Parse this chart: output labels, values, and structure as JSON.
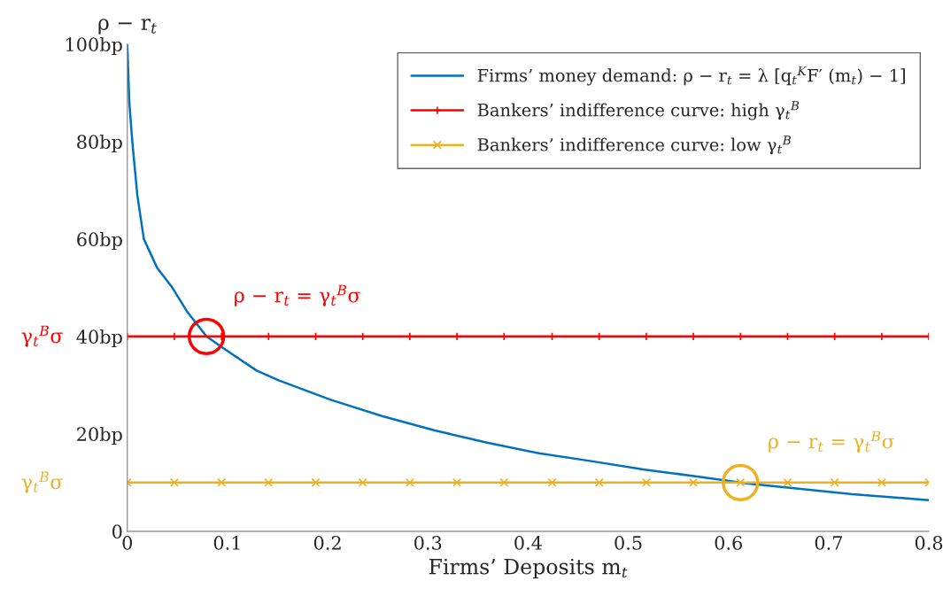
{
  "chart_data": {
    "type": "line",
    "xlabel": "Firms’ Deposits m$_{t}$",
    "ylabel": "ρ − r$_{t}$",
    "xlim": [
      0,
      0.8
    ],
    "xticks": [
      0,
      0.1,
      0.2,
      0.3,
      0.4,
      0.5,
      0.6,
      0.7,
      0.8
    ],
    "ylim": [
      0,
      100
    ],
    "yticks": [
      0,
      {
        "value": 20,
        "label": "20bp"
      },
      {
        "value": 40,
        "label": "40bp"
      },
      {
        "value": 60,
        "label": "60bp"
      },
      {
        "value": 80,
        "label": "80bp"
      },
      {
        "value": 100,
        "label": "100bp"
      }
    ],
    "grid": false,
    "legend": "top right",
    "series": [
      {
        "name": "Firms’ money demand: ρ − r$_{t}$ = λ [q$_{t}$$^{K}$F′ (m$_{t}$) − 1]",
        "color": "#0072bd",
        "marker": "none",
        "x": [
          0,
          0.002,
          0.005,
          0.01,
          0.0165,
          0.03,
          0.045,
          0.06,
          0.079,
          0.1,
          0.129,
          0.151,
          0.203,
          0.255,
          0.307,
          0.359,
          0.411,
          0.463,
          0.515,
          0.567,
          0.62,
          0.672,
          0.724,
          0.8
        ],
        "values": [
          100,
          88,
          80,
          69,
          60,
          54,
          50,
          45,
          40,
          37,
          33,
          31,
          27,
          23.6,
          20.7,
          18.2,
          16,
          14.4,
          12.7,
          11.3,
          9.8,
          8.7,
          7.6,
          6.4
        ]
      },
      {
        "name": "Bankers’ indifference curve: high γ$_{t}$$^{B}$",
        "color": "#ff0000",
        "marker": "plus",
        "x": [
          0,
          0.047,
          0.094,
          0.141,
          0.188,
          0.235,
          0.282,
          0.329,
          0.376,
          0.424,
          0.471,
          0.518,
          0.565,
          0.612,
          0.659,
          0.706,
          0.753,
          0.8
        ],
        "values": [
          40,
          40,
          40,
          40,
          40,
          40,
          40,
          40,
          40,
          40,
          40,
          40,
          40,
          40,
          40,
          40,
          40,
          40
        ]
      },
      {
        "name": "Bankers’ indifference curve: low γ$_{t}$$^{B}$",
        "color": "#edb120",
        "marker": "cross",
        "x": [
          0,
          0.047,
          0.094,
          0.141,
          0.188,
          0.235,
          0.282,
          0.329,
          0.376,
          0.424,
          0.471,
          0.518,
          0.565,
          0.612,
          0.659,
          0.706,
          0.753,
          0.8
        ],
        "values": [
          10,
          10,
          10,
          10,
          10,
          10,
          10,
          10,
          10,
          10,
          10,
          10,
          10,
          10,
          10,
          10,
          10,
          10
        ]
      }
    ],
    "annotations": [
      "γ$_{t}$$^{B}$σ",
      "γ$_{t}$$^{B}$σ",
      {
        "text": "ρ − r$_{t}$ = γ$_{t}$$^{B}$σ",
        "x": 0.079,
        "y": 40
      },
      {
        "text": "ρ − r$_{t}$ = γ$_{t}$$^{B}$σ",
        "x": 0.612,
        "y": 10
      }
    ]
  }
}
